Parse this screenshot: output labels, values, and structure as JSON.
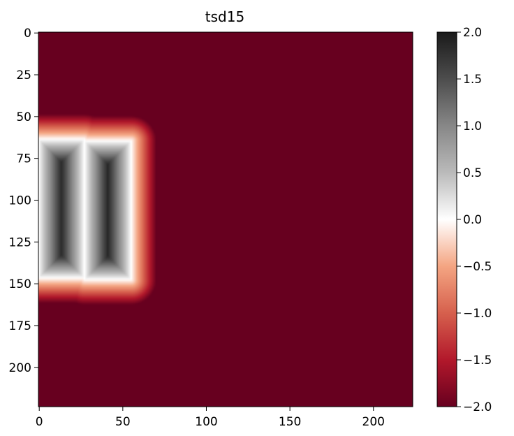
{
  "chart_data": {
    "type": "heatmap",
    "title": "tsd15",
    "xlabel": "",
    "ylabel": "",
    "grid": false,
    "image_size": [
      224,
      224
    ],
    "xlim": [
      0,
      224
    ],
    "ylim": [
      224,
      0
    ],
    "x_ticks": [
      0,
      50,
      100,
      150,
      200
    ],
    "y_ticks": [
      0,
      25,
      50,
      75,
      100,
      125,
      150,
      175,
      200
    ],
    "colormap": "RdGy",
    "color_range": [
      -2.0,
      2.0
    ],
    "colorbar_ticks": [
      "2.0",
      "1.5",
      "1.0",
      "0.5",
      "0.0",
      "−0.5",
      "−1.0",
      "−1.5",
      "−2.0"
    ],
    "colorbar_tick_values": [
      2.0,
      1.5,
      1.0,
      0.5,
      0.0,
      -0.5,
      -1.0,
      -1.5,
      -2.0
    ],
    "colormap_stops": [
      {
        "value": 2.0,
        "color": "#1a1a1a"
      },
      {
        "value": 1.5,
        "color": "#4d4d4d"
      },
      {
        "value": 1.0,
        "color": "#878787"
      },
      {
        "value": 0.5,
        "color": "#bababa"
      },
      {
        "value": 0.0,
        "color": "#ffffff"
      },
      {
        "value": -0.5,
        "color": "#f4a582"
      },
      {
        "value": -1.0,
        "color": "#d6604d"
      },
      {
        "value": -1.5,
        "color": "#b2182b"
      },
      {
        "value": -2.0,
        "color": "#67001f"
      }
    ],
    "background_value": -2.0,
    "truncation_distance": 15,
    "rectangles": [
      {
        "x0": 0,
        "x1": 27.5,
        "y0": 64,
        "y1": 147
      },
      {
        "x0": 27.5,
        "x1": 55.5,
        "y0": 65,
        "y1": 148
      }
    ]
  }
}
